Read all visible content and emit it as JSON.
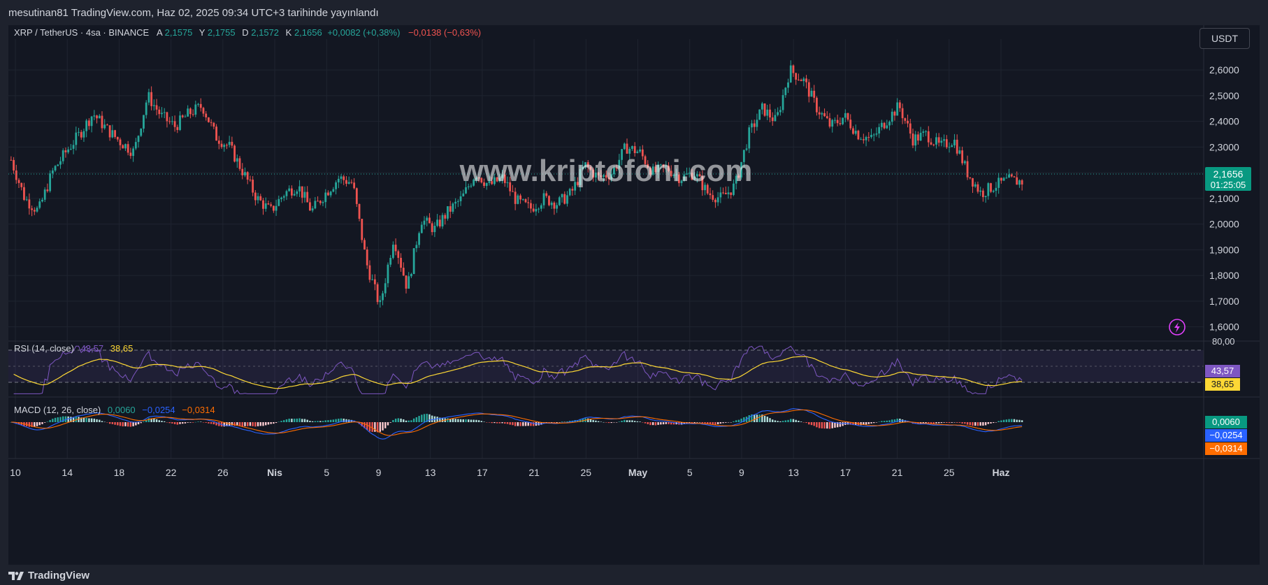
{
  "header": {
    "published_by": "mesutinan81 TradingView.com, Haz 02, 2025 09:34 UTC+3 tarihinde yayınlandı"
  },
  "legend": {
    "symbol": "XRP / TetherUS · 4sa · BINANCE",
    "open_label": "A",
    "open": "2,1575",
    "high_label": "Y",
    "high": "2,1755",
    "low_label": "D",
    "low": "2,1572",
    "close_label": "K",
    "close": "2,1656",
    "change": "+0,0082 (+0,38%)",
    "change2": "−0,0138 (−0,63%)"
  },
  "quote_currency": "USDT",
  "watermark": "www.kriptofoni.com",
  "price_axis": {
    "ticks": [
      "2,6000",
      "2,5000",
      "2,4000",
      "2,3000",
      "2,2000",
      "2,1000",
      "2,0000",
      "1,9000",
      "1,8000",
      "1,7000",
      "1,6000"
    ],
    "last_price": "2,1656",
    "countdown": "01:25:05"
  },
  "rsi": {
    "label": "RSI (14, close)",
    "value": "43,57",
    "ma_value": "38,65",
    "axis_top": "80,00"
  },
  "macd": {
    "label": "MACD (12, 26, close)",
    "hist": "0,0060",
    "macd": "−0,0254",
    "signal": "−0,0314"
  },
  "time_axis": [
    "10",
    "14",
    "18",
    "22",
    "26",
    "Nis",
    "5",
    "9",
    "13",
    "17",
    "21",
    "25",
    "May",
    "5",
    "9",
    "13",
    "17",
    "21",
    "25",
    "Haz"
  ],
  "brand": "TradingView",
  "colors": {
    "up": "#26a69a",
    "down": "#ef5350",
    "rsi_line": "#7e57c2",
    "rsi_ma": "#fdd835",
    "macd_line": "#2962ff",
    "signal_line": "#ff6d00",
    "background": "#131722"
  },
  "chart_data": [
    {
      "type": "candlestick",
      "title": "XRP / TetherUS · 4sa · BINANCE",
      "ylim": [
        1.55,
        2.72
      ],
      "x": [
        "10",
        "14",
        "18",
        "22",
        "26",
        "Nis",
        "5",
        "9",
        "13",
        "17",
        "21",
        "25",
        "May",
        "5",
        "9",
        "13",
        "17",
        "21",
        "25",
        "Haz"
      ],
      "close_path": [
        2.25,
        2.1,
        2.05,
        2.2,
        2.28,
        2.35,
        2.43,
        2.37,
        2.32,
        2.28,
        2.5,
        2.42,
        2.38,
        2.43,
        2.46,
        2.34,
        2.3,
        2.2,
        2.1,
        2.05,
        2.12,
        2.15,
        2.05,
        2.12,
        2.18,
        2.16,
        1.85,
        1.68,
        1.95,
        1.75,
        2.02,
        1.98,
        2.05,
        2.1,
        2.2,
        2.15,
        2.18,
        2.09,
        2.06,
        2.1,
        2.08,
        2.12,
        2.23,
        2.18,
        2.2,
        2.3,
        2.28,
        2.2,
        2.22,
        2.18,
        2.2,
        2.12,
        2.1,
        2.15,
        2.35,
        2.45,
        2.4,
        2.6,
        2.56,
        2.45,
        2.38,
        2.42,
        2.35,
        2.33,
        2.4,
        2.46,
        2.33,
        2.35,
        2.3,
        2.33,
        2.2,
        2.12,
        2.15,
        2.17
      ],
      "last": 2.1656
    },
    {
      "type": "line",
      "title": "RSI (14, close)",
      "ylim": [
        25,
        80
      ],
      "series": [
        {
          "name": "RSI",
          "last": 43.57
        },
        {
          "name": "MA",
          "last": 38.65
        }
      ]
    },
    {
      "type": "bar",
      "title": "MACD (12, 26, close)",
      "series": [
        {
          "name": "Histogram",
          "last": 0.006
        },
        {
          "name": "MACD",
          "last": -0.0254
        },
        {
          "name": "Signal",
          "last": -0.0314
        }
      ]
    }
  ]
}
